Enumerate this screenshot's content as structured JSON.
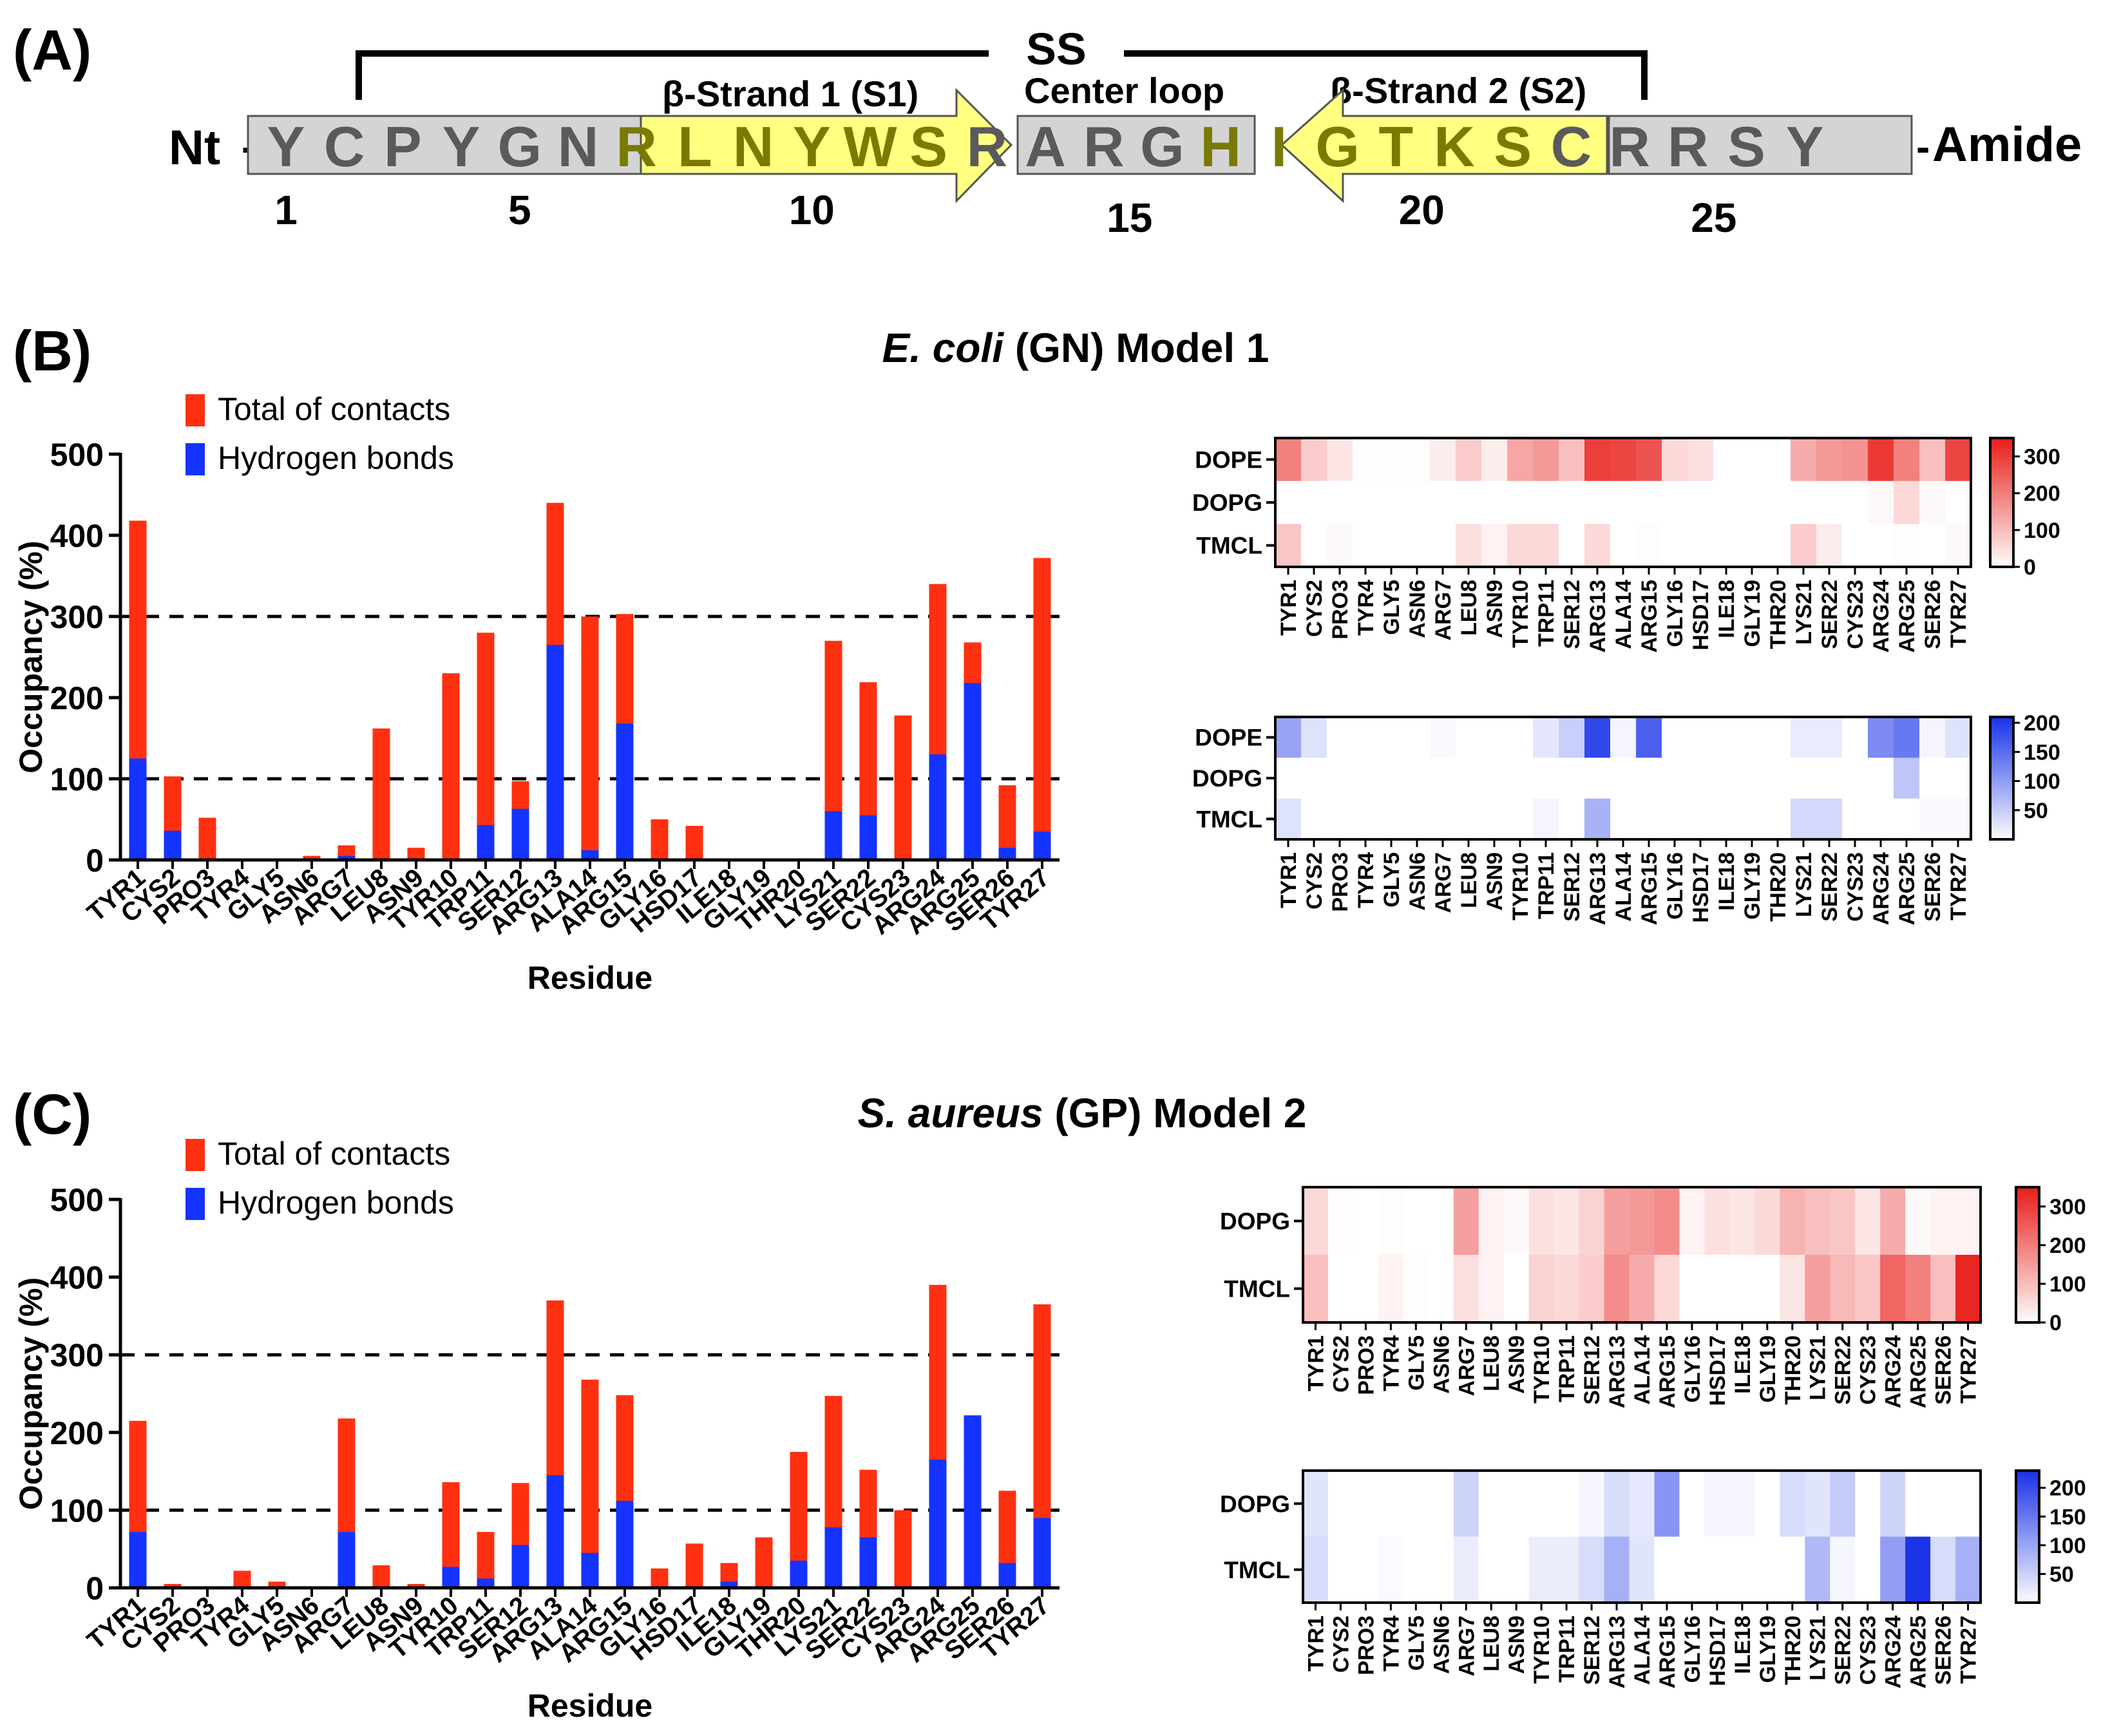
{
  "panel_a": {
    "label": "(A)",
    "ss_label": "SS",
    "nt_label": "Nt",
    "amide_label": "Amide",
    "dash": "-",
    "strand1_label": "β-Strand 1 (S1)",
    "strand2_label": "β-Strand 2 (S2)",
    "center_loop_label": "Center loop",
    "sequence": [
      "Y",
      "C",
      "P",
      "Y",
      "G",
      "N",
      "R",
      "L",
      "N",
      "Y",
      "W",
      "S",
      "R",
      "A",
      "R",
      "G",
      "H",
      "I",
      "G",
      "T",
      "K",
      "S",
      "C",
      "R",
      "R",
      "S",
      "Y"
    ],
    "numbers": [
      "1",
      "5",
      "10",
      "15",
      "20",
      "25"
    ],
    "colors": {
      "grey_box": "#d4d4d4",
      "grey_letter": "#5a5a5a",
      "yellow_box": "#ffff80",
      "yellow_letter": "#7a7a00"
    }
  },
  "panel_b": {
    "label": "(B)",
    "title_italic": "E. coli",
    "title_rest": " (GN) Model 1"
  },
  "panel_c": {
    "label": "(C)",
    "title_italic": "S. aureus",
    "title_rest": " (GP) Model 2"
  },
  "colors": {
    "total": "#ff3010",
    "hbond": "#1533ff",
    "heat_red": "#e8201c",
    "heat_blue": "#1c34e8"
  },
  "chart_data": [
    {
      "id": "B-bar",
      "type": "bar",
      "stacked": "overlay",
      "categories": [
        "TYR1",
        "CYS2",
        "PRO3",
        "TYR4",
        "GLY5",
        "ASN6",
        "ARG7",
        "LEU8",
        "ASN9",
        "TYR10",
        "TRP11",
        "SER12",
        "ARG13",
        "ALA14",
        "ARG15",
        "GLY16",
        "HSD17",
        "ILE18",
        "GLY19",
        "THR20",
        "LYS21",
        "SER22",
        "CYS23",
        "ARG24",
        "ARG25",
        "SER26",
        "TYR27"
      ],
      "series": [
        {
          "name": "Total of contacts",
          "values": [
            418,
            103,
            52,
            0,
            0,
            5,
            18,
            162,
            15,
            230,
            280,
            97,
            440,
            300,
            303,
            50,
            42,
            0,
            0,
            0,
            270,
            219,
            178,
            340,
            268,
            92,
            372
          ]
        },
        {
          "name": "Hydrogen bonds",
          "values": [
            125,
            36,
            0,
            0,
            0,
            0,
            5,
            0,
            0,
            0,
            43,
            63,
            265,
            12,
            168,
            0,
            0,
            0,
            0,
            0,
            60,
            55,
            0,
            130,
            218,
            15,
            35
          ]
        }
      ],
      "xlabel": "Residue",
      "ylabel": "Occupancy (%)",
      "ylim": [
        0,
        500
      ],
      "yticks": [
        "0",
        "100",
        "200",
        "300",
        "400",
        "500"
      ],
      "reference_lines": [
        100,
        300
      ]
    },
    {
      "id": "C-bar",
      "type": "bar",
      "stacked": "overlay",
      "categories": [
        "TYR1",
        "CYS2",
        "PRO3",
        "TYR4",
        "GLY5",
        "ASN6",
        "ARG7",
        "LEU8",
        "ASN9",
        "TYR10",
        "TRP11",
        "SER12",
        "ARG13",
        "ALA14",
        "ARG15",
        "GLY16",
        "HSD17",
        "ILE18",
        "GLY19",
        "THR20",
        "LYS21",
        "SER22",
        "CYS23",
        "ARG24",
        "ARG25",
        "SER26",
        "TYR27"
      ],
      "series": [
        {
          "name": "Total of contacts",
          "values": [
            215,
            5,
            0,
            22,
            8,
            0,
            218,
            29,
            5,
            136,
            72,
            135,
            370,
            268,
            248,
            25,
            57,
            32,
            65,
            175,
            247,
            152,
            100,
            390,
            222,
            125,
            365
          ]
        },
        {
          "name": "Hydrogen bonds",
          "values": [
            72,
            0,
            0,
            0,
            0,
            0,
            72,
            0,
            0,
            27,
            12,
            55,
            145,
            45,
            112,
            0,
            0,
            8,
            0,
            35,
            78,
            65,
            0,
            165,
            222,
            32,
            90
          ]
        }
      ],
      "xlabel": "Residue",
      "ylabel": "Occupancy (%)",
      "ylim": [
        0,
        500
      ],
      "yticks": [
        "0",
        "100",
        "200",
        "300",
        "400",
        "500"
      ],
      "reference_lines": [
        100,
        300
      ]
    },
    {
      "id": "B-heat-total",
      "type": "heatmap",
      "color": "red",
      "rows": [
        "DOPE",
        "DOPG",
        "TMCL"
      ],
      "columns": [
        "TYR1",
        "CYS2",
        "PRO3",
        "TYR4",
        "GLY5",
        "ASN6",
        "ARG7",
        "LEU8",
        "ASN9",
        "TYR10",
        "TRP11",
        "SER12",
        "ARG13",
        "ALA14",
        "ARG15",
        "GLY16",
        "HSD17",
        "ILE18",
        "GLY19",
        "THR20",
        "LYS21",
        "SER22",
        "CYS23",
        "ARG24",
        "ARG25",
        "SER26",
        "TYR27"
      ],
      "values": [
        [
          200,
          80,
          40,
          5,
          5,
          5,
          30,
          80,
          30,
          140,
          160,
          100,
          300,
          290,
          270,
          60,
          50,
          0,
          0,
          0,
          130,
          160,
          170,
          310,
          200,
          100,
          290
        ],
        [
          0,
          0,
          0,
          0,
          0,
          0,
          0,
          0,
          0,
          0,
          0,
          0,
          0,
          0,
          0,
          0,
          0,
          0,
          0,
          0,
          0,
          0,
          0,
          10,
          60,
          10,
          0
        ],
        [
          90,
          0,
          10,
          0,
          0,
          0,
          0,
          50,
          20,
          60,
          60,
          0,
          60,
          0,
          5,
          0,
          0,
          0,
          0,
          0,
          80,
          30,
          0,
          0,
          5,
          0,
          10
        ]
      ],
      "vmin": 0,
      "vmax": 350,
      "colorbar_ticks": [
        "0",
        "100",
        "200",
        "300"
      ]
    },
    {
      "id": "B-heat-hbond",
      "type": "heatmap",
      "color": "blue",
      "rows": [
        "DOPE",
        "DOPG",
        "TMCL"
      ],
      "columns": [
        "TYR1",
        "CYS2",
        "PRO3",
        "TYR4",
        "GLY5",
        "ASN6",
        "ARG7",
        "LEU8",
        "ASN9",
        "TYR10",
        "TRP11",
        "SER12",
        "ARG13",
        "ALA14",
        "ARG15",
        "GLY16",
        "HSD17",
        "ILE18",
        "GLY19",
        "THR20",
        "LYS21",
        "SER22",
        "CYS23",
        "ARG24",
        "ARG25",
        "SER26",
        "TYR27"
      ],
      "values": [
        [
          95,
          30,
          0,
          0,
          0,
          0,
          5,
          0,
          0,
          0,
          25,
          50,
          190,
          10,
          165,
          0,
          0,
          0,
          0,
          0,
          20,
          20,
          0,
          120,
          140,
          10,
          30
        ],
        [
          0,
          0,
          0,
          0,
          0,
          0,
          0,
          0,
          0,
          0,
          0,
          0,
          0,
          0,
          0,
          0,
          0,
          0,
          0,
          0,
          0,
          0,
          0,
          0,
          60,
          0,
          0
        ],
        [
          30,
          0,
          0,
          0,
          0,
          0,
          0,
          0,
          0,
          0,
          10,
          0,
          80,
          0,
          0,
          0,
          0,
          0,
          0,
          0,
          40,
          40,
          0,
          0,
          0,
          5,
          5
        ]
      ],
      "vmin": 0,
      "vmax": 210,
      "colorbar_ticks": [
        "50",
        "100",
        "150",
        "200"
      ]
    },
    {
      "id": "C-heat-total",
      "type": "heatmap",
      "color": "red",
      "rows": [
        "DOPG",
        "TMCL"
      ],
      "columns": [
        "TYR1",
        "CYS2",
        "PRO3",
        "TYR4",
        "GLY5",
        "ASN6",
        "ARG7",
        "LEU8",
        "ASN9",
        "TYR10",
        "TRP11",
        "SER12",
        "ARG13",
        "ALA14",
        "ARG15",
        "GLY16",
        "HSD17",
        "ILE18",
        "GLY19",
        "THR20",
        "LYS21",
        "SER22",
        "CYS23",
        "ARG24",
        "ARG25",
        "SER26",
        "TYR27"
      ],
      "values": [
        [
          60,
          5,
          0,
          5,
          0,
          0,
          150,
          20,
          10,
          50,
          40,
          70,
          150,
          160,
          180,
          20,
          50,
          40,
          60,
          120,
          100,
          90,
          40,
          130,
          10,
          20,
          20
        ],
        [
          100,
          0,
          0,
          20,
          5,
          0,
          50,
          20,
          0,
          70,
          60,
          80,
          180,
          130,
          60,
          0,
          0,
          0,
          0,
          40,
          150,
          110,
          90,
          240,
          200,
          100,
          340
        ]
      ],
      "vmin": 0,
      "vmax": 350,
      "colorbar_ticks": [
        "0",
        "100",
        "200",
        "300"
      ]
    },
    {
      "id": "C-heat-hbond",
      "type": "heatmap",
      "color": "blue",
      "rows": [
        "DOPG",
        "TMCL"
      ],
      "columns": [
        "TYR1",
        "CYS2",
        "PRO3",
        "TYR4",
        "GLY5",
        "ASN6",
        "ARG7",
        "LEU8",
        "ASN9",
        "TYR10",
        "TRP11",
        "SER12",
        "ARG13",
        "ALA14",
        "ARG15",
        "GLY16",
        "HSD17",
        "ILE18",
        "GLY19",
        "THR20",
        "LYS21",
        "SER22",
        "CYS23",
        "ARG24",
        "ARG25",
        "SER26",
        "TYR27"
      ],
      "values": [
        [
          30,
          0,
          0,
          0,
          0,
          0,
          50,
          0,
          0,
          0,
          0,
          10,
          40,
          25,
          120,
          0,
          10,
          10,
          0,
          40,
          30,
          60,
          0,
          50,
          0,
          0,
          0
        ],
        [
          40,
          0,
          0,
          5,
          0,
          0,
          20,
          0,
          0,
          20,
          20,
          40,
          90,
          30,
          0,
          0,
          0,
          0,
          0,
          0,
          80,
          10,
          0,
          110,
          230,
          40,
          90
        ]
      ],
      "vmin": 0,
      "vmax": 230,
      "colorbar_ticks": [
        "50",
        "100",
        "150",
        "200"
      ]
    }
  ]
}
